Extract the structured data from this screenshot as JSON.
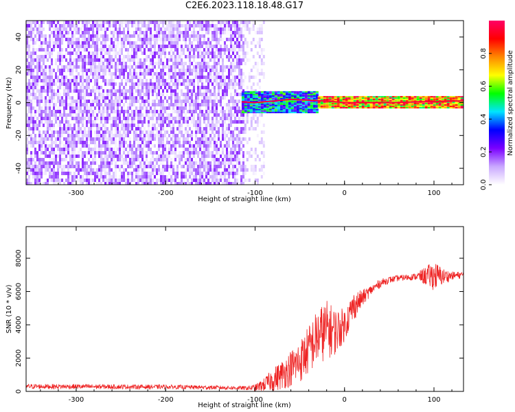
{
  "title": "C2E6.2023.118.18.48.G17",
  "chart_data": [
    {
      "type": "heatmap",
      "xlabel": "Height of straight line (km)",
      "ylabel": "Frequency (Hz)",
      "xlim": [
        -356,
        133
      ],
      "ylim": [
        -50,
        50
      ],
      "xticks": [
        -300,
        -200,
        -100,
        0,
        100
      ],
      "yticks": [
        -40,
        -20,
        0,
        20,
        40
      ],
      "colorbar": {
        "label": "Normalized spectral amplitude",
        "range": [
          0.0,
          1.0
        ],
        "ticks": [
          0.0,
          0.2,
          0.4,
          0.6,
          0.8
        ],
        "colormap": [
          "#ffffff",
          "#c9a8ff",
          "#7a00ff",
          "#0000ff",
          "#00e5ff",
          "#00ff00",
          "#ffff00",
          "#ff8800",
          "#ff0000",
          "#ff0066"
        ]
      },
      "grid": false,
      "regions": [
        {
          "x": [
            -356,
            -112
          ],
          "y": [
            -50,
            50
          ],
          "amplitude": [
            0.0,
            0.2
          ]
        },
        {
          "x": [
            -112,
            -90
          ],
          "y": [
            -50,
            50
          ],
          "amplitude": [
            0.0,
            0.1
          ]
        },
        {
          "x": [
            -115,
            -30
          ],
          "y": [
            -6,
            7
          ],
          "amplitude": [
            0.2,
            0.6
          ]
        },
        {
          "x": [
            -30,
            133
          ],
          "y": [
            -3,
            4
          ],
          "amplitude": [
            0.5,
            1.0
          ]
        }
      ],
      "ridge": {
        "x": [
          -115,
          -100,
          -80,
          -60,
          -40,
          -20,
          0,
          20,
          40,
          60,
          80,
          100,
          120,
          133
        ],
        "y": [
          0.5,
          0,
          1,
          2,
          1.5,
          1,
          0,
          0,
          0,
          0,
          0.5,
          0.5,
          1,
          1
        ]
      }
    },
    {
      "type": "line",
      "xlabel": "Height of straight line (km)",
      "ylabel": "SNR (10 * v/v)",
      "xlim": [
        -356,
        133
      ],
      "ylim": [
        0,
        9900
      ],
      "xticks": [
        -300,
        -200,
        -100,
        0,
        100
      ],
      "yticks": [
        0,
        2000,
        4000,
        6000,
        8000
      ],
      "color": "#ee2222",
      "grid": false,
      "series": [
        {
          "x": [
            -356,
            -300,
            -250,
            -200,
            -150,
            -110,
            -100,
            -90,
            -80,
            -70,
            -60,
            -50,
            -40,
            -30,
            -20,
            -10,
            0,
            10,
            20,
            30,
            40,
            50,
            60,
            80,
            100,
            110,
            120,
            133
          ],
          "y": [
            300,
            290,
            280,
            270,
            240,
            200,
            220,
            400,
            700,
            1000,
            1400,
            1800,
            2500,
            3300,
            3700,
            3600,
            4000,
            5100,
            5600,
            6100,
            6500,
            6700,
            6800,
            6900,
            6950,
            6900,
            6950,
            7000
          ],
          "noise": [
            150,
            150,
            140,
            130,
            120,
            120,
            200,
            400,
            700,
            900,
            1100,
            1300,
            1500,
            1700,
            1800,
            1400,
            1000,
            900,
            500,
            300,
            250,
            200,
            180,
            200,
            900,
            500,
            250,
            200
          ]
        }
      ]
    }
  ]
}
